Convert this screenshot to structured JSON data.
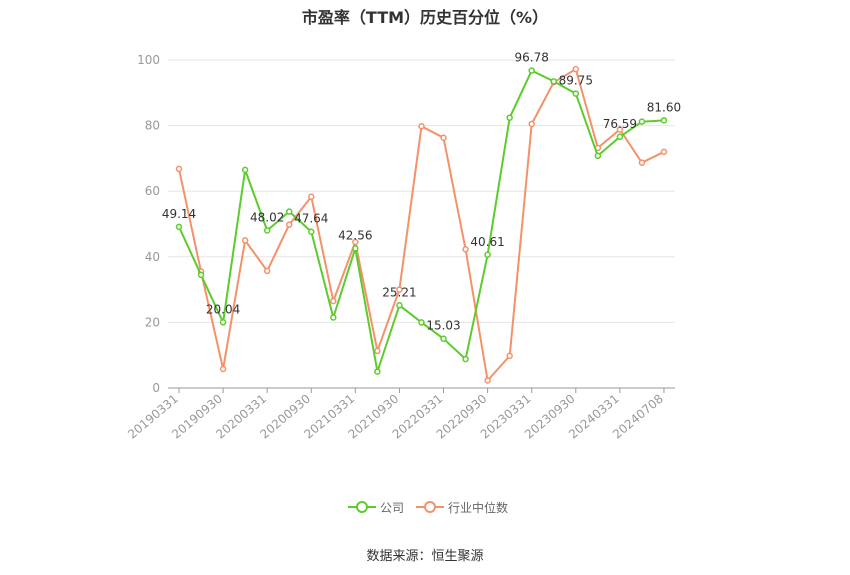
{
  "chart_data": {
    "type": "line",
    "title": "市盈率（TTM）历史百分位（%）",
    "ylim": [
      0,
      100
    ],
    "yticks": [
      0,
      20,
      40,
      60,
      80,
      100
    ],
    "x": [
      "20190331",
      "20190630",
      "20190930",
      "20191231",
      "20200331",
      "20200630",
      "20200930",
      "20201231",
      "20210331",
      "20210630",
      "20210930",
      "20211231",
      "20220331",
      "20220630",
      "20220930",
      "20221231",
      "20230331",
      "20230630",
      "20230930",
      "20231231",
      "20240331",
      "20240630",
      "20240708"
    ],
    "xticks": [
      "20190331",
      "20190930",
      "20200331",
      "20200930",
      "20210331",
      "20210930",
      "20220331",
      "20220930",
      "20230331",
      "20230930",
      "20240331",
      "20240708"
    ],
    "series": [
      {
        "name": "公司",
        "color": "#5ccc2c",
        "values": [
          49.14,
          34.5,
          20.04,
          66.5,
          48.02,
          53.8,
          47.64,
          21.5,
          42.56,
          5.0,
          25.21,
          20.0,
          15.03,
          8.8,
          40.61,
          82.4,
          96.78,
          93.5,
          89.75,
          70.8,
          76.59,
          81.2,
          81.6
        ],
        "labels": {
          "0": "49.14",
          "2": "20.04",
          "4": "48.02",
          "6": "47.64",
          "8": "42.56",
          "10": "25.21",
          "12": "15.03",
          "14": "40.61",
          "16": "96.78",
          "18": "89.75",
          "20": "76.59",
          "22": "81.60"
        }
      },
      {
        "name": "行业中位数",
        "color": "#f5916a",
        "values": [
          66.8,
          35.5,
          5.8,
          45.0,
          35.7,
          49.8,
          58.3,
          26.5,
          44.5,
          11.3,
          30.0,
          79.8,
          76.3,
          42.3,
          2.3,
          9.8,
          80.5,
          93.2,
          97.2,
          73.2,
          78.8,
          68.7,
          72.0
        ]
      }
    ],
    "source": "数据来源：恒生聚源"
  }
}
